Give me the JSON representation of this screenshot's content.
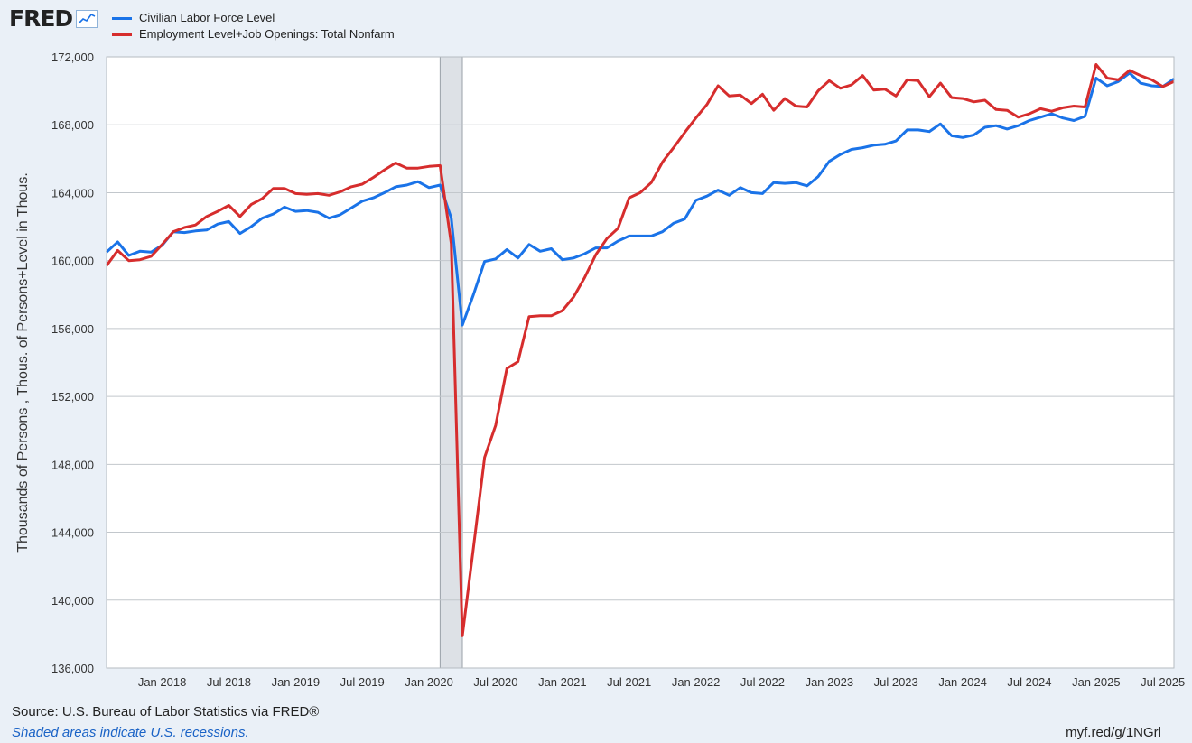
{
  "header": {
    "logo_text": "FRED",
    "legend": [
      {
        "label": "Civilian Labor Force Level",
        "color": "#1a73e8"
      },
      {
        "label": "Employment Level+Job Openings: Total Nonfarm",
        "color": "#d62d2d"
      }
    ]
  },
  "footer": {
    "source": "Source: U.S. Bureau of Labor Statistics via FRED®",
    "note": "Shaded areas indicate U.S. recessions.",
    "link": "myf.red/g/1NGrl"
  },
  "chart_data": {
    "type": "line",
    "ylabel": "Thousands of Persons , Thous. of Persons+Level in Thous.",
    "ylim": [
      136000,
      172000
    ],
    "yticks": [
      136000,
      140000,
      144000,
      148000,
      152000,
      156000,
      160000,
      164000,
      168000,
      172000
    ],
    "ytick_labels": [
      "136,000",
      "140,000",
      "144,000",
      "148,000",
      "152,000",
      "156,000",
      "160,000",
      "164,000",
      "168,000",
      "172,000"
    ],
    "xlim": [
      "2017-08",
      "2025-08"
    ],
    "xticks": [
      "2018-01",
      "2018-07",
      "2019-01",
      "2019-07",
      "2020-01",
      "2020-07",
      "2021-01",
      "2021-07",
      "2022-01",
      "2022-07",
      "2023-01",
      "2023-07",
      "2024-01",
      "2024-07",
      "2025-01",
      "2025-07"
    ],
    "xtick_labels": [
      "Jan 2018",
      "Jul 2018",
      "Jan 2019",
      "Jul 2019",
      "Jan 2020",
      "Jul 2020",
      "Jan 2021",
      "Jul 2021",
      "Jan 2022",
      "Jul 2022",
      "Jan 2023",
      "Jul 2023",
      "Jan 2024",
      "Jul 2024",
      "Jan 2025",
      "Jul 2025"
    ],
    "grid": true,
    "legend_position": "top-left",
    "recessions": [
      {
        "start": "2020-02",
        "end": "2020-04"
      }
    ],
    "series": [
      {
        "name": "Civilian Labor Force Level",
        "color": "#1a73e8",
        "x": [
          "2017-08",
          "2017-09",
          "2017-10",
          "2017-11",
          "2017-12",
          "2018-01",
          "2018-02",
          "2018-03",
          "2018-04",
          "2018-05",
          "2018-06",
          "2018-07",
          "2018-08",
          "2018-09",
          "2018-10",
          "2018-11",
          "2018-12",
          "2019-01",
          "2019-02",
          "2019-03",
          "2019-04",
          "2019-05",
          "2019-06",
          "2019-07",
          "2019-08",
          "2019-09",
          "2019-10",
          "2019-11",
          "2019-12",
          "2020-01",
          "2020-02",
          "2020-03",
          "2020-04",
          "2020-05",
          "2020-06",
          "2020-07",
          "2020-08",
          "2020-09",
          "2020-10",
          "2020-11",
          "2020-12",
          "2021-01",
          "2021-02",
          "2021-03",
          "2021-04",
          "2021-05",
          "2021-06",
          "2021-07",
          "2021-08",
          "2021-09",
          "2021-10",
          "2021-11",
          "2021-12",
          "2022-01",
          "2022-02",
          "2022-03",
          "2022-04",
          "2022-05",
          "2022-06",
          "2022-07",
          "2022-08",
          "2022-09",
          "2022-10",
          "2022-11",
          "2022-12",
          "2023-01",
          "2023-02",
          "2023-03",
          "2023-04",
          "2023-05",
          "2023-06",
          "2023-07",
          "2023-08",
          "2023-09",
          "2023-10",
          "2023-11",
          "2023-12",
          "2024-01",
          "2024-02",
          "2024-03",
          "2024-04",
          "2024-05",
          "2024-06",
          "2024-07",
          "2024-08",
          "2024-09",
          "2024-10",
          "2024-11",
          "2024-12",
          "2025-01",
          "2025-02",
          "2025-03",
          "2025-04",
          "2025-05",
          "2025-06",
          "2025-07",
          "2025-08"
        ],
        "y": [
          160500,
          161100,
          160300,
          160550,
          160500,
          160900,
          161700,
          161650,
          161750,
          161800,
          162150,
          162300,
          161600,
          162000,
          162500,
          162750,
          163150,
          162900,
          162950,
          162850,
          162500,
          162700,
          163100,
          163500,
          163700,
          164000,
          164350,
          164450,
          164650,
          164300,
          164450,
          162500,
          156200,
          158000,
          159950,
          160100,
          160650,
          160150,
          160950,
          160550,
          160700,
          160050,
          160150,
          160400,
          160750,
          160750,
          161150,
          161450,
          161450,
          161450,
          161700,
          162200,
          162450,
          163550,
          163800,
          164150,
          163850,
          164300,
          164000,
          163950,
          164600,
          164550,
          164600,
          164400,
          164950,
          165850,
          166250,
          166550,
          166650,
          166800,
          166850,
          167050,
          167700,
          167700,
          167600,
          168050,
          167350,
          167250,
          167400,
          167850,
          167950,
          167750,
          167950,
          168250,
          168450,
          168650,
          168400,
          168250,
          168500,
          170750,
          170300,
          170550,
          171050,
          170450,
          170300,
          170250,
          170700
        ]
      },
      {
        "name": "Employment Level+Job Openings: Total Nonfarm",
        "color": "#d62d2d",
        "x": [
          "2017-08",
          "2017-09",
          "2017-10",
          "2017-11",
          "2017-12",
          "2018-01",
          "2018-02",
          "2018-03",
          "2018-04",
          "2018-05",
          "2018-06",
          "2018-07",
          "2018-08",
          "2018-09",
          "2018-10",
          "2018-11",
          "2018-12",
          "2019-01",
          "2019-02",
          "2019-03",
          "2019-04",
          "2019-05",
          "2019-06",
          "2019-07",
          "2019-08",
          "2019-09",
          "2019-10",
          "2019-11",
          "2019-12",
          "2020-01",
          "2020-02",
          "2020-03",
          "2020-04",
          "2020-05",
          "2020-06",
          "2020-07",
          "2020-08",
          "2020-09",
          "2020-10",
          "2020-11",
          "2020-12",
          "2021-01",
          "2021-02",
          "2021-03",
          "2021-04",
          "2021-05",
          "2021-06",
          "2021-07",
          "2021-08",
          "2021-09",
          "2021-10",
          "2021-11",
          "2021-12",
          "2022-01",
          "2022-02",
          "2022-03",
          "2022-04",
          "2022-05",
          "2022-06",
          "2022-07",
          "2022-08",
          "2022-09",
          "2022-10",
          "2022-11",
          "2022-12",
          "2023-01",
          "2023-02",
          "2023-03",
          "2023-04",
          "2023-05",
          "2023-06",
          "2023-07",
          "2023-08",
          "2023-09",
          "2023-10",
          "2023-11",
          "2023-12",
          "2024-01",
          "2024-02",
          "2024-03",
          "2024-04",
          "2024-05",
          "2024-06",
          "2024-07",
          "2024-08",
          "2024-09",
          "2024-10",
          "2024-11",
          "2024-12",
          "2025-01",
          "2025-02",
          "2025-03",
          "2025-04",
          "2025-05",
          "2025-06",
          "2025-07",
          "2025-08"
        ],
        "y": [
          159700,
          160600,
          160000,
          160050,
          160250,
          160950,
          161700,
          161950,
          162100,
          162600,
          162900,
          163250,
          162600,
          163300,
          163650,
          164250,
          164250,
          163950,
          163900,
          163950,
          163850,
          164050,
          164350,
          164500,
          164900,
          165350,
          165750,
          165450,
          165450,
          165550,
          165600,
          161000,
          137900,
          143100,
          148400,
          150300,
          153650,
          154050,
          156700,
          156750,
          156750,
          157050,
          157850,
          159000,
          160350,
          161300,
          161900,
          163700,
          164000,
          164600,
          165800,
          166650,
          167550,
          168400,
          169200,
          170300,
          169700,
          169750,
          169250,
          169800,
          168850,
          169550,
          169100,
          169050,
          170000,
          170600,
          170150,
          170350,
          170900,
          170050,
          170100,
          169700,
          170650,
          170600,
          169650,
          170450,
          169600,
          169550,
          169350,
          169450,
          168900,
          168850,
          168450,
          168650,
          168950,
          168800,
          169000,
          169100,
          169050,
          171550,
          170750,
          170650,
          171200,
          170900,
          170650,
          170250,
          170550
        ]
      }
    ]
  }
}
